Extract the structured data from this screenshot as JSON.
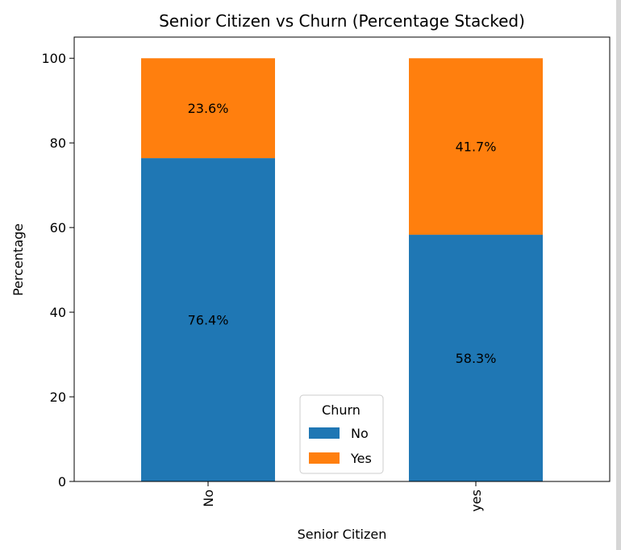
{
  "chart_data": {
    "type": "bar",
    "stacked": true,
    "title": "Senior Citizen vs Churn (Percentage Stacked)",
    "xlabel": "Senior Citizen",
    "ylabel": "Percentage",
    "categories": [
      "No",
      "yes"
    ],
    "ylim": [
      0,
      105
    ],
    "yticks": [
      0,
      20,
      40,
      60,
      80,
      100
    ],
    "grid": false,
    "series": [
      {
        "name": "No",
        "values": [
          76.4,
          58.3
        ],
        "labels": [
          "76.4%",
          "58.3%"
        ],
        "color": "#1f77b4"
      },
      {
        "name": "Yes",
        "values": [
          23.6,
          41.7
        ],
        "labels": [
          "23.6%",
          "41.7%"
        ],
        "color": "#ff7f0e"
      }
    ],
    "legend": {
      "title": "Churn",
      "placement": "lower-center"
    }
  }
}
